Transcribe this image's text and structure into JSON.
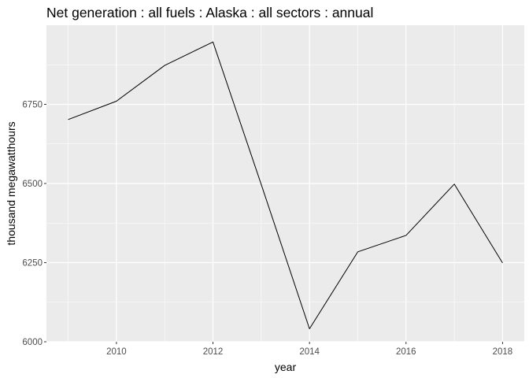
{
  "chart_data": {
    "type": "line",
    "title": "Net generation : all fuels : Alaska : all sectors : annual",
    "xlabel": "year",
    "ylabel": "thousand megawatthours",
    "x": [
      2009,
      2010,
      2011,
      2012,
      2013,
      2014,
      2015,
      2016,
      2017,
      2018
    ],
    "series": [
      {
        "values": [
          6702,
          6760,
          6873,
          6947,
          6497,
          6041,
          6284,
          6336,
          6498,
          6249
        ]
      }
    ],
    "xlim": [
      2008.55,
      2018.45
    ],
    "ylim": [
      6000,
      7000
    ],
    "xticks": [
      2010,
      2012,
      2014,
      2016,
      2018
    ],
    "yticks": [
      6000,
      6250,
      6500,
      6750
    ],
    "xtick_labels": [
      "2010",
      "2012",
      "2014",
      "2016",
      "2018"
    ],
    "ytick_labels": [
      "6000",
      "6250",
      "6500",
      "6750"
    ],
    "grid": true,
    "colors": {
      "panel": "#ebebeb",
      "grid": "#ffffff",
      "line": "#000000"
    }
  }
}
